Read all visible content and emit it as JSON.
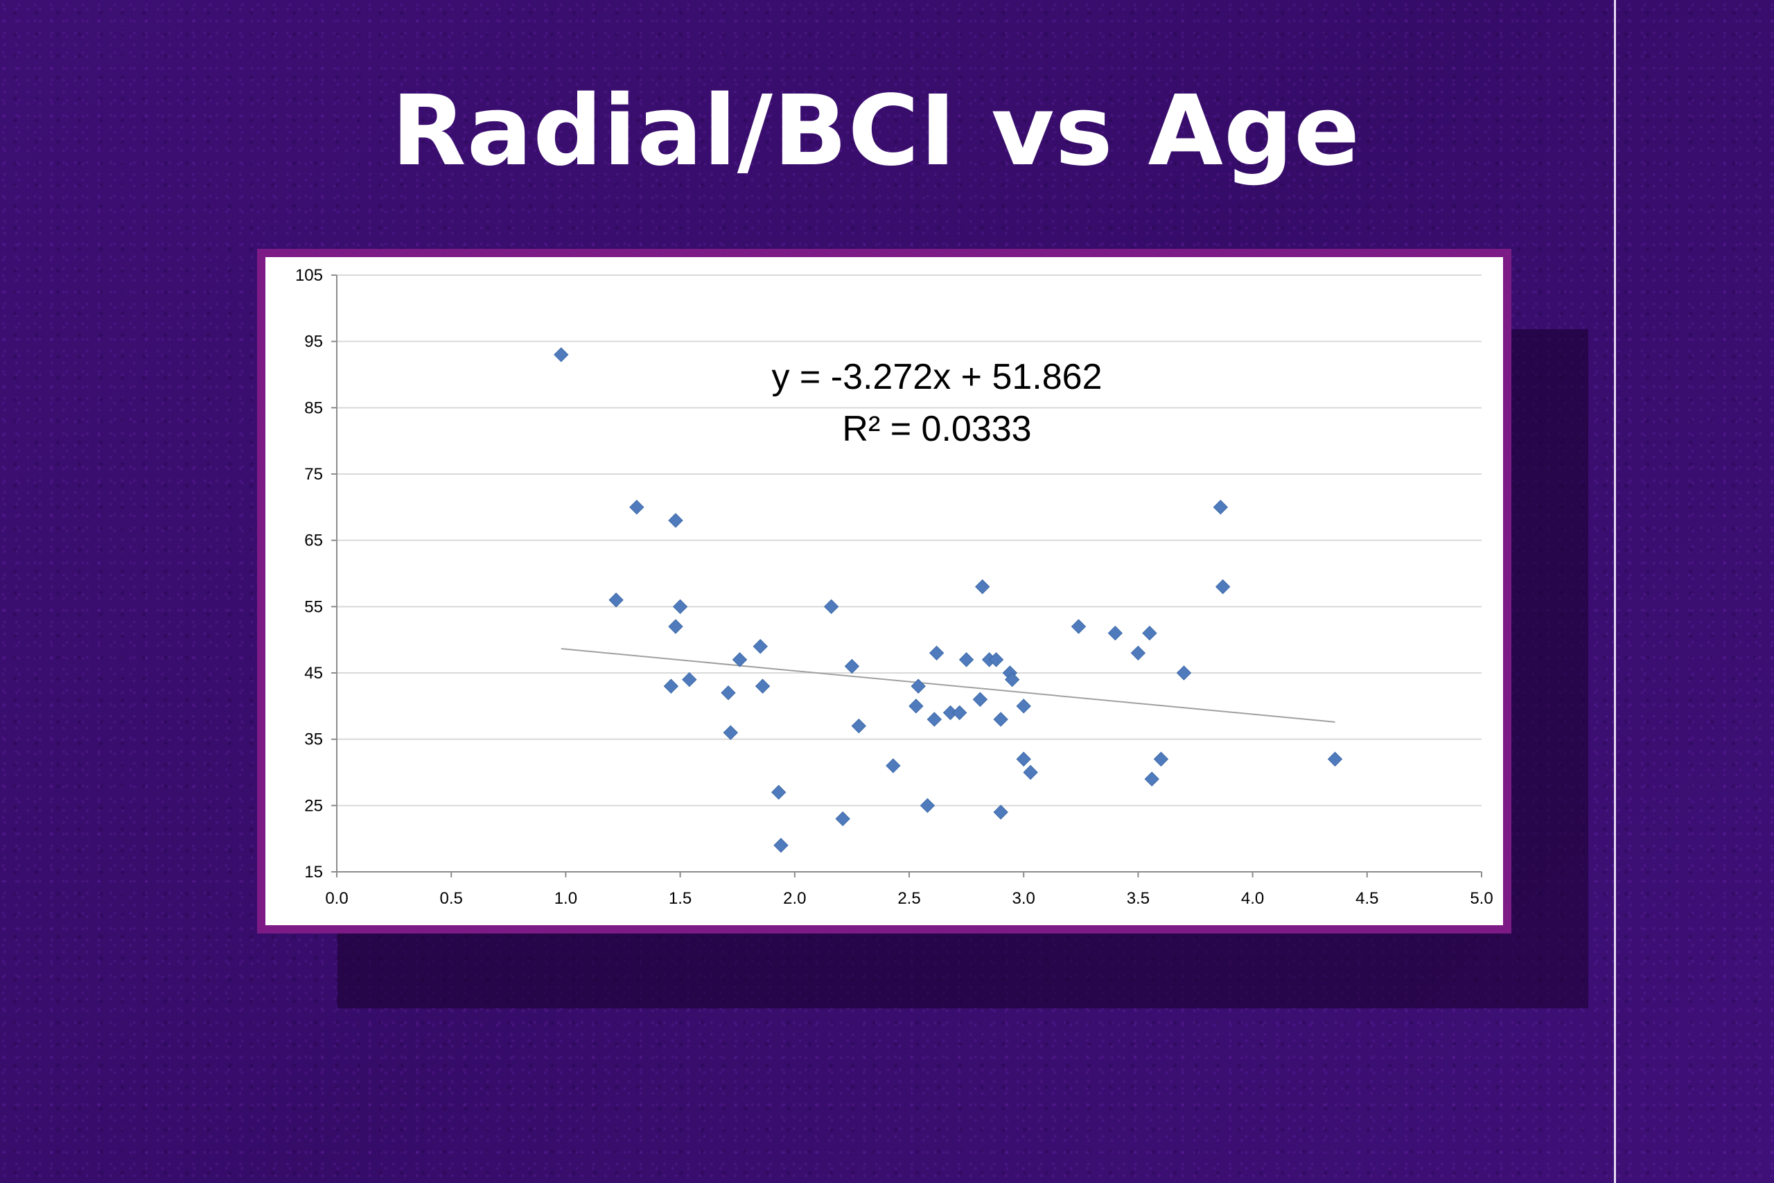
{
  "slide": {
    "title": "Radial/BCI vs Age"
  },
  "colors": {
    "background": "#3a0f6e",
    "frame_border": "#7c1a86",
    "marker": "#4f7bbd",
    "trendline": "#a0a0a0",
    "gridline": "#d9d9d9"
  },
  "chart_data": {
    "type": "scatter",
    "title": "",
    "xlabel": "",
    "ylabel": "",
    "xlim": [
      0,
      5
    ],
    "ylim": [
      15,
      105
    ],
    "x_ticks": [
      "0.0",
      "0.5",
      "1.0",
      "1.5",
      "2.0",
      "2.5",
      "3.0",
      "3.5",
      "4.0",
      "4.5",
      "5.0"
    ],
    "y_ticks": [
      "15",
      "25",
      "35",
      "45",
      "55",
      "65",
      "75",
      "85",
      "95",
      "105"
    ],
    "grid": "horizontal",
    "marker": "diamond",
    "series": [
      {
        "points": [
          [
            0.98,
            93
          ],
          [
            1.22,
            56
          ],
          [
            1.31,
            70
          ],
          [
            1.46,
            43
          ],
          [
            1.48,
            52
          ],
          [
            1.48,
            68
          ],
          [
            1.5,
            55
          ],
          [
            1.54,
            44
          ],
          [
            1.71,
            42
          ],
          [
            1.72,
            36
          ],
          [
            1.76,
            47
          ],
          [
            1.85,
            49
          ],
          [
            1.86,
            43
          ],
          [
            1.93,
            27
          ],
          [
            1.94,
            19
          ],
          [
            2.16,
            55
          ],
          [
            2.21,
            23
          ],
          [
            2.25,
            46
          ],
          [
            2.28,
            37
          ],
          [
            2.43,
            31
          ],
          [
            2.53,
            40
          ],
          [
            2.54,
            43
          ],
          [
            2.58,
            25
          ],
          [
            2.61,
            38
          ],
          [
            2.62,
            48
          ],
          [
            2.68,
            39
          ],
          [
            2.72,
            39
          ],
          [
            2.75,
            47
          ],
          [
            2.81,
            41
          ],
          [
            2.82,
            58
          ],
          [
            2.85,
            47
          ],
          [
            2.88,
            47
          ],
          [
            2.9,
            38
          ],
          [
            2.9,
            24
          ],
          [
            2.94,
            45
          ],
          [
            2.95,
            44
          ],
          [
            3.0,
            40
          ],
          [
            3.0,
            32
          ],
          [
            3.03,
            30
          ],
          [
            3.24,
            52
          ],
          [
            3.4,
            51
          ],
          [
            3.5,
            48
          ],
          [
            3.55,
            51
          ],
          [
            3.56,
            29
          ],
          [
            3.6,
            32
          ],
          [
            3.7,
            45
          ],
          [
            3.86,
            70
          ],
          [
            3.87,
            58
          ],
          [
            4.36,
            32
          ]
        ]
      }
    ],
    "trendline": {
      "type": "linear",
      "slope": -3.272,
      "intercept": 51.862,
      "x_range": [
        0.98,
        4.36
      ],
      "equation": "y = -3.272x + 51.862",
      "r_squared": "R² = 0.0333"
    }
  }
}
